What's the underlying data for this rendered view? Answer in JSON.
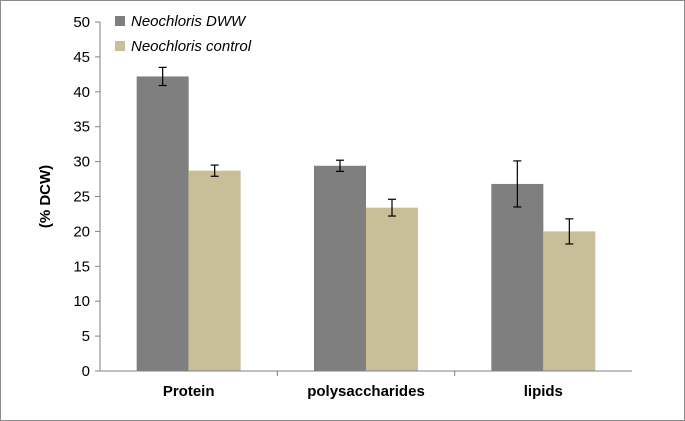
{
  "chart_data": {
    "type": "bar",
    "title": "",
    "xlabel": "",
    "ylabel": "(% DCW)",
    "ylim": [
      0,
      50
    ],
    "yticks": [
      0,
      5,
      10,
      15,
      20,
      25,
      30,
      35,
      40,
      45,
      50
    ],
    "categories": [
      "Protein",
      "polysaccharides",
      "lipids"
    ],
    "series": [
      {
        "name": "Neochloris DWW",
        "color": "#7f7f7f",
        "values": [
          42.2,
          29.4,
          26.8
        ],
        "errors": [
          1.3,
          0.8,
          3.3
        ]
      },
      {
        "name": "Neochloris control",
        "color": "#c8bf98",
        "values": [
          28.7,
          23.4,
          20.0
        ],
        "errors": [
          0.8,
          1.2,
          1.8
        ]
      }
    ],
    "grid": false,
    "legend_position": "top-left"
  }
}
